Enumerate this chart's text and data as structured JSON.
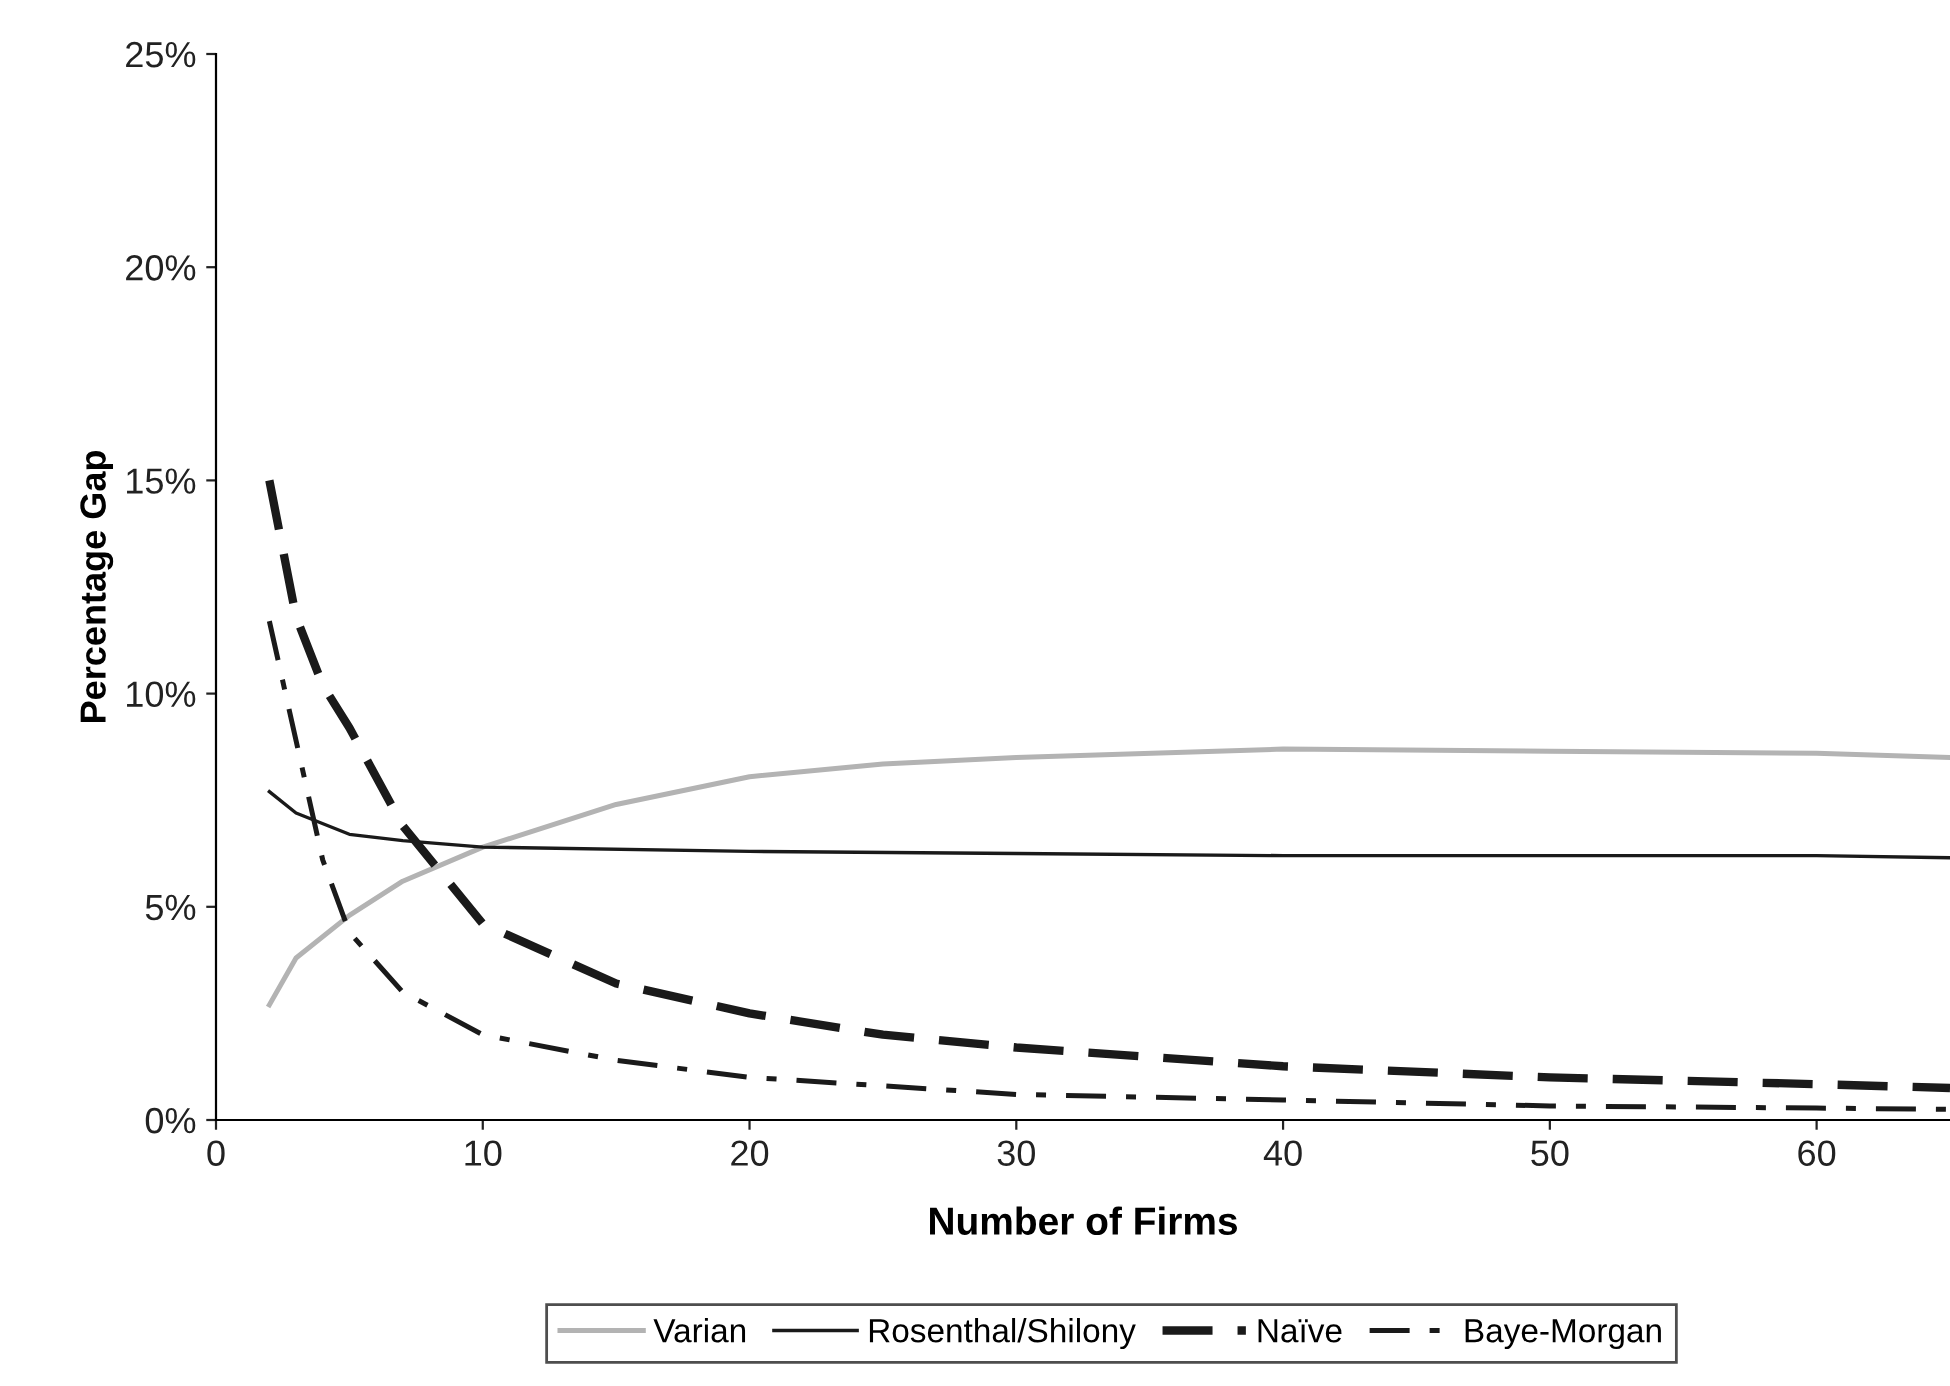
{
  "chart_data": {
    "type": "line",
    "xlabel": "Number of Firms",
    "ylabel": "Percentage Gap",
    "xlim": [
      0,
      65
    ],
    "xticks": [
      0,
      10,
      20,
      30,
      40,
      50,
      60
    ],
    "ylim": [
      0,
      25
    ],
    "yticks": [
      {
        "value": 0,
        "label": "0%"
      },
      {
        "value": 5,
        "label": "5%"
      },
      {
        "value": 10,
        "label": "10%"
      },
      {
        "value": 15,
        "label": "15%"
      },
      {
        "value": 20,
        "label": "20%"
      },
      {
        "value": 25,
        "label": "25%"
      }
    ],
    "grid": false,
    "legend": "bottom",
    "series": [
      {
        "name": "Varian",
        "color": "#b3b3b3",
        "line_style": "solid",
        "x": [
          2,
          3,
          5,
          7,
          10,
          15,
          20,
          25,
          30,
          40,
          50,
          60,
          65
        ],
        "values": [
          2.7,
          3.8,
          4.8,
          5.6,
          6.4,
          7.4,
          8.05,
          8.35,
          8.5,
          8.7,
          8.65,
          8.6,
          8.5
        ]
      },
      {
        "name": "Rosenthal/Shilony",
        "color": "#1a1a1a",
        "line_style": "solid",
        "x": [
          2,
          3,
          5,
          7,
          10,
          20,
          30,
          40,
          50,
          60,
          65
        ],
        "values": [
          7.7,
          7.2,
          6.7,
          6.55,
          6.4,
          6.3,
          6.25,
          6.2,
          6.2,
          6.2,
          6.15
        ]
      },
      {
        "name": "Naïve",
        "color": "#1a1a1a",
        "line_style": "dashed",
        "x": [
          2,
          3,
          4,
          5,
          7,
          10,
          15,
          20,
          25,
          30,
          40,
          50,
          60,
          65
        ],
        "values": [
          15,
          11.8,
          10.2,
          9.2,
          6.9,
          4.6,
          3.2,
          2.5,
          2.0,
          1.7,
          1.26,
          1.0,
          0.84,
          0.75
        ]
      },
      {
        "name": "Baye-Morgan",
        "color": "#1a1a1a",
        "line_style": "dashdot",
        "x": [
          2,
          3,
          4,
          5,
          7,
          10,
          15,
          20,
          30,
          40,
          50,
          60,
          65
        ],
        "values": [
          11.7,
          8.9,
          6.1,
          4.4,
          3.0,
          2.0,
          1.4,
          1.0,
          0.6,
          0.47,
          0.33,
          0.28,
          0.25
        ]
      }
    ]
  }
}
